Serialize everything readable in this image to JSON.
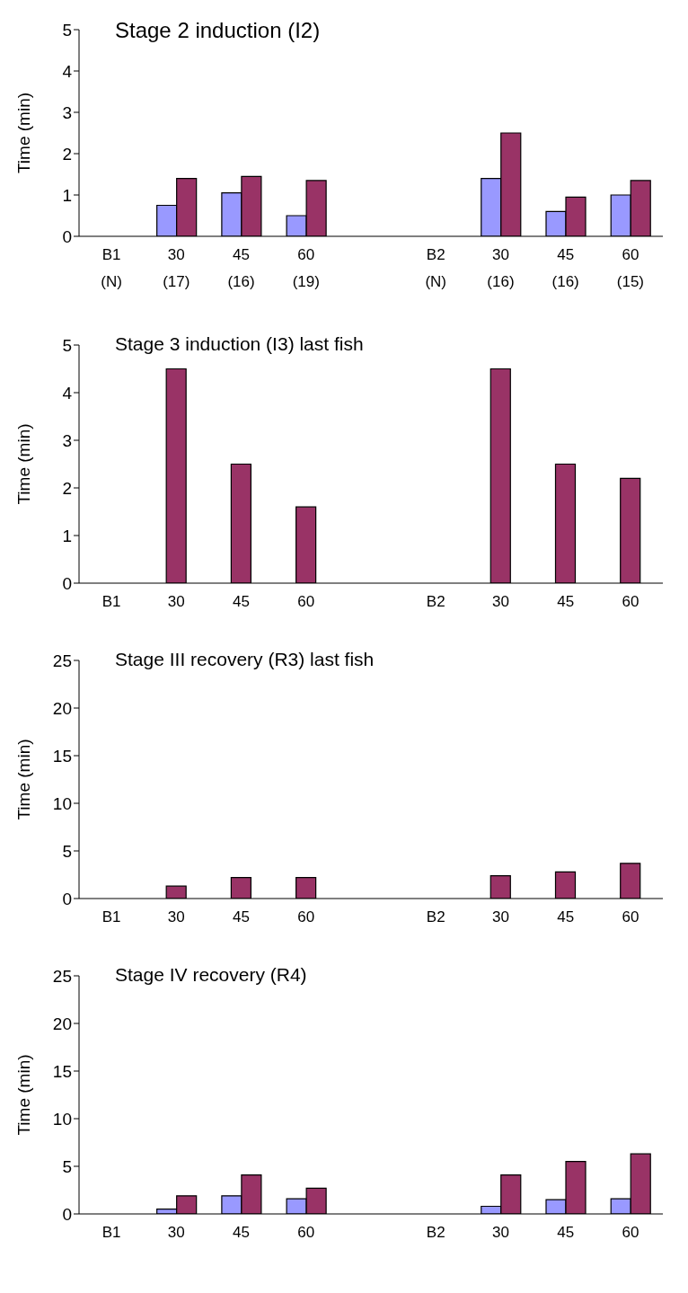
{
  "chart_data": [
    {
      "type": "bar",
      "title": "Stage 2 induction (I2)",
      "ylabel": "Time (min)",
      "categories": [
        "B1\n(N)",
        "30\n(17)",
        "45\n(16)",
        "60\n(19)",
        null,
        "B2\n(N)",
        "30\n(16)",
        "45\n(16)",
        "60\n(15)"
      ],
      "series": [
        {
          "color": "#9999ff",
          "values": [
            null,
            0.75,
            1.05,
            0.5,
            null,
            null,
            1.4,
            0.6,
            1.0
          ]
        },
        {
          "color": "#993366",
          "values": [
            null,
            1.4,
            1.45,
            1.35,
            null,
            null,
            2.5,
            0.95,
            1.35
          ]
        }
      ],
      "ylim": [
        0,
        5
      ],
      "yticks": [
        0,
        1,
        2,
        3,
        4,
        5
      ],
      "grid": false,
      "legend": false
    },
    {
      "type": "bar",
      "title": "Stage 3 induction (I3) last fish",
      "ylabel": "Time (min)",
      "categories": [
        "B1",
        "30",
        "45",
        "60",
        null,
        "B2",
        "30",
        "45",
        "60"
      ],
      "series": [
        {
          "color": "#993366",
          "values": [
            null,
            4.5,
            2.5,
            1.6,
            null,
            null,
            4.5,
            2.5,
            2.2
          ]
        }
      ],
      "ylim": [
        0,
        5
      ],
      "yticks": [
        0,
        1,
        2,
        3,
        4,
        5
      ],
      "grid": false,
      "legend": false
    },
    {
      "type": "bar",
      "title": "Stage III recovery (R3) last fish",
      "ylabel": "Time (min)",
      "categories": [
        "B1",
        "30",
        "45",
        "60",
        null,
        "B2",
        "30",
        "45",
        "60"
      ],
      "series": [
        {
          "color": "#993366",
          "values": [
            null,
            1.3,
            2.2,
            2.2,
            null,
            null,
            2.4,
            2.8,
            3.7
          ]
        }
      ],
      "ylim": [
        0,
        25
      ],
      "yticks": [
        0,
        5,
        10,
        15,
        20,
        25
      ],
      "grid": false,
      "legend": false
    },
    {
      "type": "bar",
      "title": "Stage IV recovery (R4)",
      "ylabel": "Time (min)",
      "categories": [
        "B1",
        "30",
        "45",
        "60",
        null,
        "B2",
        "30",
        "45",
        "60"
      ],
      "series": [
        {
          "color": "#9999ff",
          "values": [
            null,
            0.5,
            1.9,
            1.6,
            null,
            null,
            0.8,
            1.5,
            1.6
          ]
        },
        {
          "color": "#993366",
          "values": [
            null,
            1.9,
            4.1,
            2.7,
            null,
            null,
            4.1,
            5.5,
            6.3
          ]
        }
      ],
      "ylim": [
        0,
        25
      ],
      "yticks": [
        0,
        5,
        10,
        15,
        20,
        25
      ],
      "grid": false,
      "legend": false
    }
  ]
}
